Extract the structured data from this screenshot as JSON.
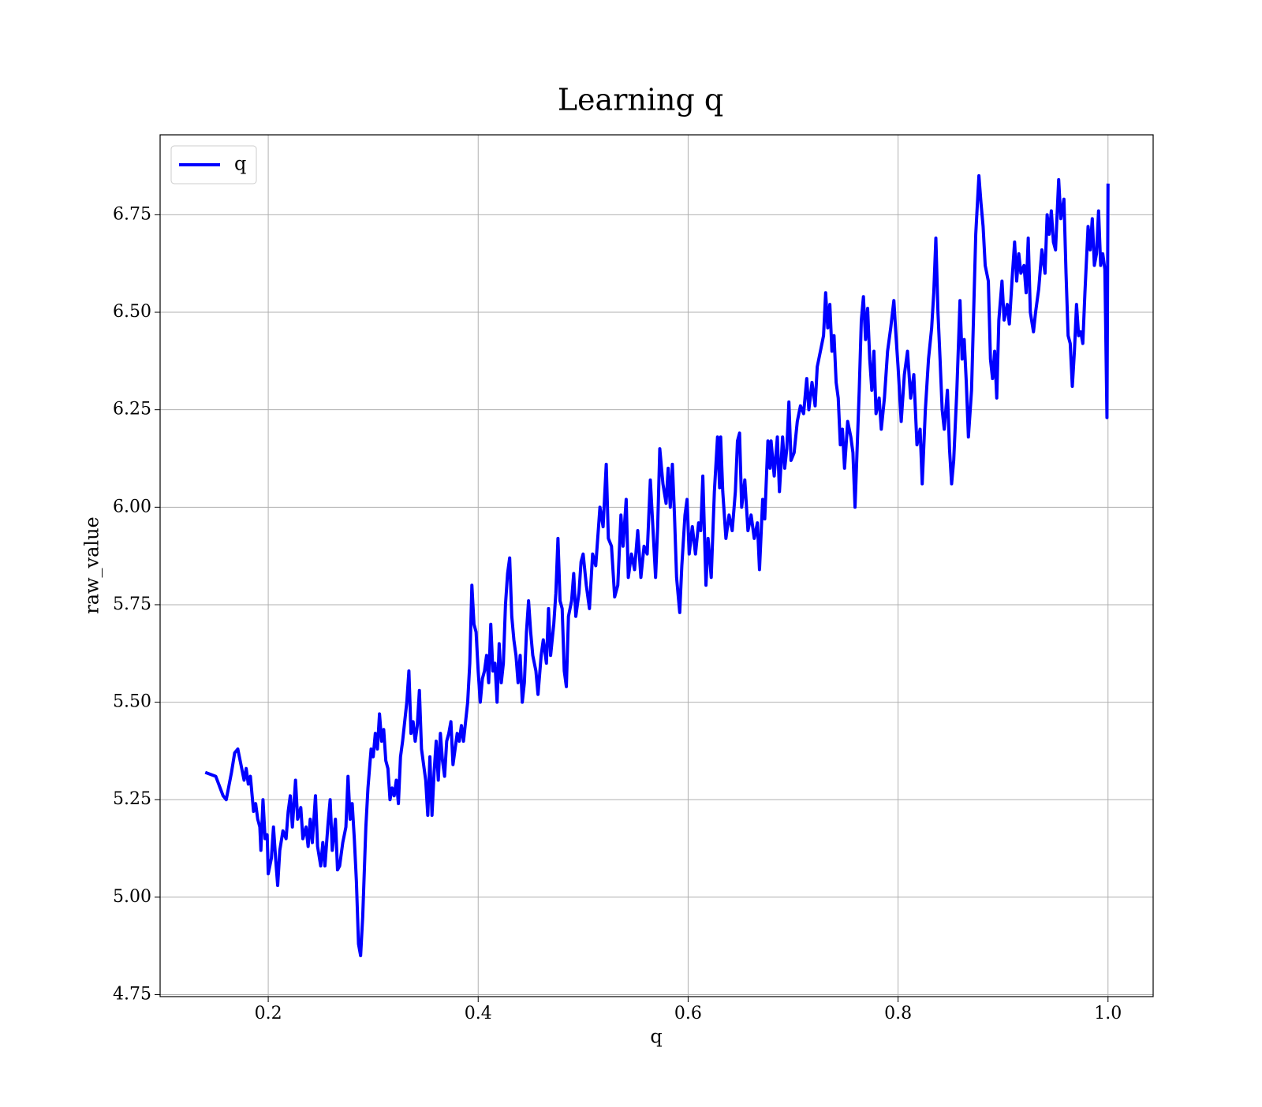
{
  "chart_data": {
    "type": "line",
    "title": "Learning q",
    "x_label": "q",
    "y_label": "raw_value",
    "xlim": [
      0.097,
      1.043
    ],
    "ylim": [
      4.745,
      6.955
    ],
    "xticks": [
      0.2,
      0.4,
      0.6,
      0.8,
      {
        "value": 1,
        "label": "1.0"
      }
    ],
    "yticks": [
      4.75,
      {
        "value": 5,
        "label": "5.00"
      },
      5.25,
      {
        "value": 5.5,
        "label": "5.50"
      },
      5.75,
      {
        "value": 6,
        "label": "6.00"
      },
      6.25,
      {
        "value": 6.5,
        "label": "6.50"
      },
      6.75
    ],
    "grid": true,
    "legend": "upper left",
    "x": [
      0.14,
      0.15,
      0.157,
      0.16,
      0.165,
      0.168,
      0.171,
      0.174,
      0.177,
      0.179,
      0.181,
      0.183,
      0.186,
      0.188,
      0.19,
      0.192,
      0.193,
      0.195,
      0.197,
      0.199,
      0.2,
      0.203,
      0.205,
      0.207,
      0.209,
      0.211,
      0.214,
      0.217,
      0.219,
      0.221,
      0.223,
      0.226,
      0.228,
      0.231,
      0.233,
      0.236,
      0.238,
      0.24,
      0.242,
      0.245,
      0.247,
      0.25,
      0.252,
      0.254,
      0.257,
      0.259,
      0.261,
      0.264,
      0.266,
      0.268,
      0.271,
      0.274,
      0.276,
      0.278,
      0.28,
      0.282,
      0.284,
      0.286,
      0.288,
      0.29,
      0.293,
      0.295,
      0.298,
      0.3,
      0.302,
      0.304,
      0.306,
      0.308,
      0.31,
      0.312,
      0.314,
      0.316,
      0.318,
      0.32,
      0.322,
      0.324,
      0.326,
      0.328,
      0.33,
      0.332,
      0.334,
      0.336,
      0.338,
      0.34,
      0.342,
      0.344,
      0.346,
      0.348,
      0.35,
      0.352,
      0.354,
      0.356,
      0.358,
      0.36,
      0.362,
      0.364,
      0.366,
      0.368,
      0.37,
      0.372,
      0.374,
      0.376,
      0.378,
      0.38,
      0.382,
      0.384,
      0.386,
      0.388,
      0.39,
      0.392,
      0.394,
      0.396,
      0.398,
      0.4,
      0.402,
      0.404,
      0.406,
      0.408,
      0.41,
      0.412,
      0.414,
      0.416,
      0.418,
      0.42,
      0.422,
      0.424,
      0.426,
      0.428,
      0.43,
      0.432,
      0.434,
      0.436,
      0.438,
      0.44,
      0.442,
      0.444,
      0.446,
      0.448,
      0.45,
      0.452,
      0.455,
      0.457,
      0.46,
      0.462,
      0.465,
      0.467,
      0.469,
      0.472,
      0.474,
      0.476,
      0.478,
      0.48,
      0.482,
      0.484,
      0.486,
      0.489,
      0.491,
      0.493,
      0.496,
      0.498,
      0.5,
      0.503,
      0.506,
      0.509,
      0.512,
      0.516,
      0.519,
      0.522,
      0.524,
      0.527,
      0.53,
      0.533,
      0.536,
      0.538,
      0.541,
      0.543,
      0.546,
      0.549,
      0.552,
      0.555,
      0.558,
      0.561,
      0.564,
      0.567,
      0.569,
      0.571,
      0.573,
      0.576,
      0.579,
      0.581,
      0.583,
      0.585,
      0.587,
      0.589,
      0.592,
      0.594,
      0.597,
      0.599,
      0.601,
      0.604,
      0.607,
      0.61,
      0.612,
      0.614,
      0.617,
      0.619,
      0.622,
      0.625,
      0.628,
      0.63,
      0.631,
      0.633,
      0.636,
      0.639,
      0.642,
      0.645,
      0.647,
      0.649,
      0.651,
      0.654,
      0.657,
      0.66,
      0.663,
      0.666,
      0.668,
      0.671,
      0.673,
      0.676,
      0.678,
      0.679,
      0.682,
      0.685,
      0.687,
      0.69,
      0.692,
      0.694,
      0.696,
      0.698,
      0.701,
      0.704,
      0.707,
      0.71,
      0.713,
      0.715,
      0.718,
      0.721,
      0.723,
      0.726,
      0.729,
      0.731,
      0.733,
      0.735,
      0.737,
      0.739,
      0.741,
      0.743,
      0.745,
      0.747,
      0.749,
      0.752,
      0.755,
      0.757,
      0.759,
      0.761,
      0.763,
      0.765,
      0.767,
      0.769,
      0.771,
      0.773,
      0.775,
      0.777,
      0.779,
      0.782,
      0.784,
      0.787,
      0.79,
      0.793,
      0.796,
      0.798,
      0.8,
      0.803,
      0.806,
      0.809,
      0.812,
      0.815,
      0.818,
      0.821,
      0.823,
      0.826,
      0.829,
      0.832,
      0.834,
      0.836,
      0.838,
      0.84,
      0.842,
      0.844,
      0.847,
      0.849,
      0.851,
      0.853,
      0.856,
      0.859,
      0.861,
      0.863,
      0.865,
      0.867,
      0.87,
      0.872,
      0.874,
      0.877,
      0.879,
      0.881,
      0.883,
      0.886,
      0.888,
      0.89,
      0.892,
      0.894,
      0.896,
      0.899,
      0.901,
      0.904,
      0.906,
      0.909,
      0.911,
      0.913,
      0.915,
      0.917,
      0.92,
      0.922,
      0.924,
      0.926,
      0.929,
      0.931,
      0.934,
      0.937,
      0.94,
      0.942,
      0.944,
      0.946,
      0.948,
      0.95,
      0.953,
      0.955,
      0.958,
      0.96,
      0.962,
      0.964,
      0.966,
      0.968,
      0.97,
      0.972,
      0.974,
      0.976,
      0.978,
      0.981,
      0.983,
      0.985,
      0.987,
      0.989,
      0.991,
      0.993,
      0.995,
      0.997,
      0.999,
      1.0
    ],
    "series": [
      {
        "name": "q",
        "color": "#0000ff",
        "values": [
          5.32,
          5.31,
          5.26,
          5.25,
          5.32,
          5.37,
          5.38,
          5.34,
          5.3,
          5.33,
          5.29,
          5.31,
          5.22,
          5.24,
          5.2,
          5.18,
          5.12,
          5.25,
          5.15,
          5.16,
          5.06,
          5.1,
          5.18,
          5.1,
          5.03,
          5.12,
          5.17,
          5.15,
          5.22,
          5.26,
          5.18,
          5.3,
          5.2,
          5.23,
          5.15,
          5.18,
          5.13,
          5.2,
          5.14,
          5.26,
          5.13,
          5.08,
          5.14,
          5.08,
          5.19,
          5.25,
          5.12,
          5.2,
          5.07,
          5.08,
          5.14,
          5.18,
          5.31,
          5.2,
          5.24,
          5.15,
          5.04,
          4.88,
          4.85,
          4.95,
          5.18,
          5.28,
          5.38,
          5.36,
          5.42,
          5.38,
          5.47,
          5.4,
          5.43,
          5.35,
          5.33,
          5.25,
          5.28,
          5.26,
          5.3,
          5.24,
          5.36,
          5.4,
          5.45,
          5.5,
          5.58,
          5.42,
          5.45,
          5.4,
          5.44,
          5.53,
          5.38,
          5.34,
          5.3,
          5.21,
          5.36,
          5.21,
          5.32,
          5.4,
          5.3,
          5.42,
          5.35,
          5.31,
          5.4,
          5.42,
          5.45,
          5.34,
          5.38,
          5.42,
          5.4,
          5.44,
          5.4,
          5.45,
          5.5,
          5.6,
          5.8,
          5.7,
          5.68,
          5.58,
          5.5,
          5.56,
          5.58,
          5.62,
          5.55,
          5.7,
          5.58,
          5.6,
          5.5,
          5.65,
          5.55,
          5.6,
          5.75,
          5.83,
          5.87,
          5.72,
          5.66,
          5.62,
          5.55,
          5.62,
          5.5,
          5.55,
          5.68,
          5.76,
          5.68,
          5.62,
          5.58,
          5.52,
          5.62,
          5.66,
          5.6,
          5.74,
          5.62,
          5.7,
          5.78,
          5.92,
          5.76,
          5.74,
          5.58,
          5.54,
          5.72,
          5.76,
          5.83,
          5.72,
          5.78,
          5.86,
          5.88,
          5.8,
          5.74,
          5.88,
          5.85,
          6.0,
          5.95,
          6.11,
          5.92,
          5.9,
          5.77,
          5.8,
          5.98,
          5.9,
          6.02,
          5.82,
          5.88,
          5.84,
          5.94,
          5.82,
          5.9,
          5.88,
          6.07,
          5.92,
          5.82,
          5.95,
          6.15,
          6.06,
          6.01,
          6.1,
          6.0,
          6.11,
          5.98,
          5.82,
          5.73,
          5.85,
          5.98,
          6.02,
          5.88,
          5.95,
          5.88,
          5.96,
          5.94,
          6.08,
          5.8,
          5.92,
          5.82,
          6.04,
          6.18,
          6.05,
          6.18,
          6.04,
          5.92,
          5.98,
          5.94,
          6.04,
          6.17,
          6.19,
          6.0,
          6.07,
          5.94,
          5.98,
          5.92,
          5.96,
          5.84,
          6.02,
          5.97,
          6.17,
          6.1,
          6.17,
          6.08,
          6.18,
          6.04,
          6.18,
          6.1,
          6.15,
          6.27,
          6.12,
          6.14,
          6.22,
          6.26,
          6.24,
          6.33,
          6.25,
          6.32,
          6.26,
          6.36,
          6.4,
          6.44,
          6.55,
          6.46,
          6.52,
          6.4,
          6.44,
          6.32,
          6.28,
          6.16,
          6.2,
          6.1,
          6.22,
          6.18,
          6.14,
          6.0,
          6.15,
          6.3,
          6.48,
          6.54,
          6.43,
          6.51,
          6.38,
          6.3,
          6.4,
          6.24,
          6.28,
          6.2,
          6.28,
          6.4,
          6.46,
          6.53,
          6.44,
          6.36,
          6.22,
          6.34,
          6.4,
          6.28,
          6.34,
          6.16,
          6.2,
          6.06,
          6.25,
          6.38,
          6.46,
          6.55,
          6.69,
          6.5,
          6.38,
          6.25,
          6.2,
          6.3,
          6.15,
          6.06,
          6.12,
          6.3,
          6.53,
          6.38,
          6.43,
          6.32,
          6.18,
          6.3,
          6.5,
          6.7,
          6.85,
          6.78,
          6.72,
          6.62,
          6.58,
          6.38,
          6.33,
          6.4,
          6.28,
          6.48,
          6.58,
          6.48,
          6.52,
          6.47,
          6.6,
          6.68,
          6.58,
          6.65,
          6.6,
          6.62,
          6.55,
          6.69,
          6.5,
          6.45,
          6.5,
          6.56,
          6.66,
          6.6,
          6.75,
          6.7,
          6.76,
          6.68,
          6.66,
          6.84,
          6.74,
          6.79,
          6.6,
          6.44,
          6.42,
          6.31,
          6.4,
          6.52,
          6.44,
          6.45,
          6.42,
          6.55,
          6.72,
          6.66,
          6.74,
          6.62,
          6.65,
          6.76,
          6.62,
          6.65,
          6.61,
          6.23,
          6.83
        ]
      }
    ]
  }
}
